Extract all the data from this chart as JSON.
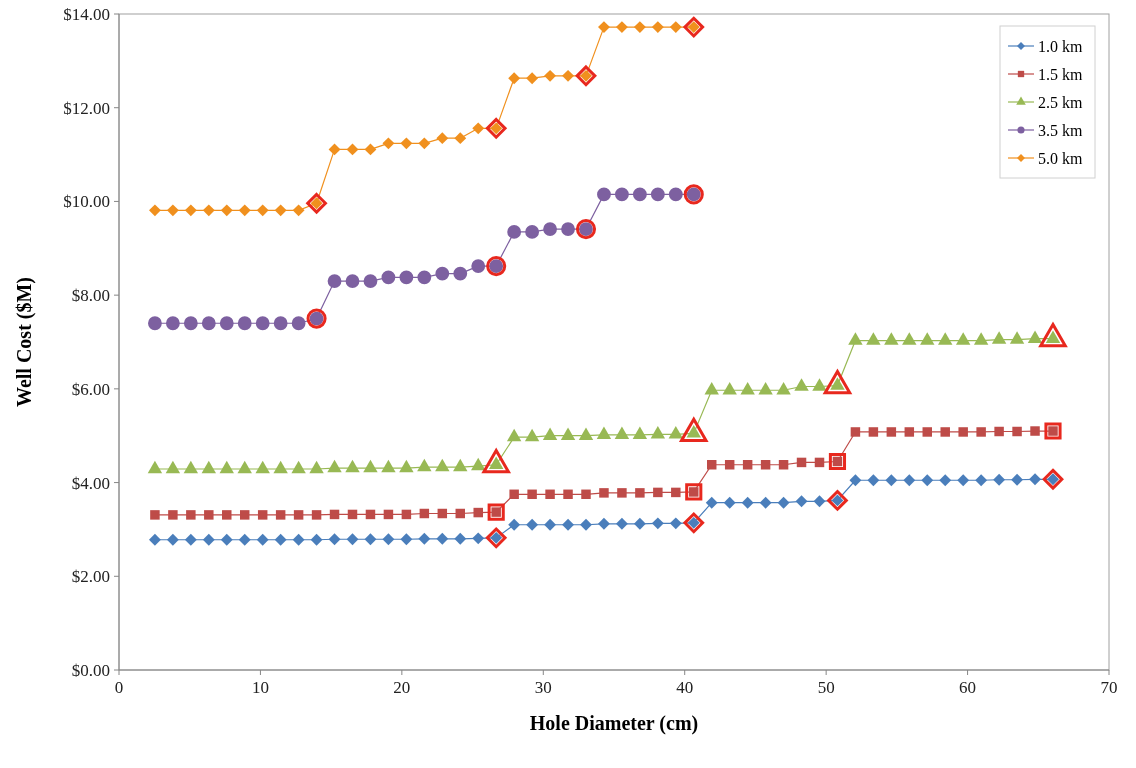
{
  "chart_data": {
    "type": "line",
    "xlabel": "Hole Diameter (cm)",
    "ylabel": "Well Cost ($M)",
    "xlim": [
      0,
      70
    ],
    "xticks": [
      0,
      10,
      20,
      30,
      40,
      50,
      60,
      70
    ],
    "ylim": [
      0,
      14
    ],
    "yticks": [
      {
        "value": 0,
        "label": "$0.00"
      },
      {
        "value": 2,
        "label": "$2.00"
      },
      {
        "value": 4,
        "label": "$4.00"
      },
      {
        "value": 6,
        "label": "$6.00"
      },
      {
        "value": 8,
        "label": "$8.00"
      },
      {
        "value": 10,
        "label": "$10.00"
      },
      {
        "value": 12,
        "label": "$12.00"
      },
      {
        "value": 14,
        "label": "$14.00"
      }
    ],
    "grid": false,
    "legend": "top right",
    "series": [
      {
        "name": "1.0 km",
        "color": "#4a7ebb",
        "marker": "diamond",
        "x": [
          2.54,
          3.81,
          5.08,
          6.35,
          7.62,
          8.89,
          10.16,
          11.43,
          12.7,
          13.97,
          15.24,
          16.51,
          17.78,
          19.05,
          20.32,
          21.59,
          22.86,
          24.13,
          25.4,
          26.67,
          27.94,
          29.21,
          30.48,
          31.75,
          33.02,
          34.29,
          35.56,
          36.83,
          38.1,
          39.37,
          40.64,
          41.91,
          43.18,
          44.45,
          45.72,
          46.99,
          48.26,
          49.53,
          50.8,
          52.07,
          53.34,
          54.61,
          55.88,
          57.15,
          58.42,
          59.69,
          60.96,
          62.23,
          63.5,
          64.77,
          66.04
        ],
        "values": [
          2.78,
          2.78,
          2.78,
          2.78,
          2.78,
          2.78,
          2.78,
          2.78,
          2.78,
          2.78,
          2.79,
          2.79,
          2.79,
          2.79,
          2.79,
          2.8,
          2.8,
          2.8,
          2.81,
          2.82,
          3.1,
          3.1,
          3.1,
          3.1,
          3.1,
          3.12,
          3.12,
          3.12,
          3.13,
          3.13,
          3.14,
          3.57,
          3.57,
          3.57,
          3.57,
          3.57,
          3.6,
          3.6,
          3.62,
          4.05,
          4.05,
          4.05,
          4.05,
          4.05,
          4.05,
          4.05,
          4.05,
          4.06,
          4.06,
          4.07,
          4.07
        ]
      },
      {
        "name": "1.5 km",
        "color": "#be4b48",
        "marker": "square",
        "x": [
          2.54,
          3.81,
          5.08,
          6.35,
          7.62,
          8.89,
          10.16,
          11.43,
          12.7,
          13.97,
          15.24,
          16.51,
          17.78,
          19.05,
          20.32,
          21.59,
          22.86,
          24.13,
          25.4,
          26.67,
          27.94,
          29.21,
          30.48,
          31.75,
          33.02,
          34.29,
          35.56,
          36.83,
          38.1,
          39.37,
          40.64,
          41.91,
          43.18,
          44.45,
          45.72,
          46.99,
          48.26,
          49.53,
          50.8,
          52.07,
          53.34,
          54.61,
          55.88,
          57.15,
          58.42,
          59.69,
          60.96,
          62.23,
          63.5,
          64.77,
          66.04
        ],
        "values": [
          3.31,
          3.31,
          3.31,
          3.31,
          3.31,
          3.31,
          3.31,
          3.31,
          3.31,
          3.31,
          3.32,
          3.32,
          3.32,
          3.32,
          3.32,
          3.34,
          3.34,
          3.34,
          3.36,
          3.37,
          3.75,
          3.75,
          3.75,
          3.75,
          3.75,
          3.78,
          3.78,
          3.78,
          3.79,
          3.79,
          3.8,
          4.38,
          4.38,
          4.38,
          4.38,
          4.38,
          4.43,
          4.43,
          4.45,
          5.08,
          5.08,
          5.08,
          5.08,
          5.08,
          5.08,
          5.08,
          5.08,
          5.09,
          5.09,
          5.1,
          5.1
        ]
      },
      {
        "name": "2.5 km",
        "color": "#98b954",
        "marker": "triangle",
        "x": [
          2.54,
          3.81,
          5.08,
          6.35,
          7.62,
          8.89,
          10.16,
          11.43,
          12.7,
          13.97,
          15.24,
          16.51,
          17.78,
          19.05,
          20.32,
          21.59,
          22.86,
          24.13,
          25.4,
          26.67,
          27.94,
          29.21,
          30.48,
          31.75,
          33.02,
          34.29,
          35.56,
          36.83,
          38.1,
          39.37,
          40.64,
          41.91,
          43.18,
          44.45,
          45.72,
          46.99,
          48.26,
          49.53,
          50.8,
          52.07,
          53.34,
          54.61,
          55.88,
          57.15,
          58.42,
          59.69,
          60.96,
          62.23,
          63.5,
          64.77,
          66.04
        ],
        "values": [
          4.29,
          4.29,
          4.29,
          4.29,
          4.29,
          4.29,
          4.29,
          4.29,
          4.29,
          4.29,
          4.31,
          4.31,
          4.31,
          4.31,
          4.31,
          4.33,
          4.33,
          4.33,
          4.35,
          4.38,
          4.97,
          4.97,
          5.0,
          5.0,
          5.0,
          5.02,
          5.02,
          5.02,
          5.03,
          5.03,
          5.05,
          5.97,
          5.97,
          5.97,
          5.97,
          5.97,
          6.05,
          6.05,
          6.07,
          7.03,
          7.03,
          7.03,
          7.03,
          7.03,
          7.03,
          7.03,
          7.03,
          7.05,
          7.05,
          7.07,
          7.07
        ]
      },
      {
        "name": "3.5 km",
        "color": "#7d60a0",
        "marker": "circle",
        "x": [
          2.54,
          3.81,
          5.08,
          6.35,
          7.62,
          8.89,
          10.16,
          11.43,
          12.7,
          13.97,
          15.24,
          16.51,
          17.78,
          19.05,
          20.32,
          21.59,
          22.86,
          24.13,
          25.4,
          26.67,
          27.94,
          29.21,
          30.48,
          31.75,
          33.02,
          34.29,
          35.56,
          36.83,
          38.1,
          39.37,
          40.64
        ],
        "values": [
          7.4,
          7.4,
          7.4,
          7.4,
          7.4,
          7.4,
          7.4,
          7.4,
          7.4,
          7.5,
          8.3,
          8.3,
          8.3,
          8.38,
          8.38,
          8.38,
          8.46,
          8.46,
          8.62,
          8.62,
          9.35,
          9.35,
          9.41,
          9.41,
          9.41,
          10.15,
          10.15,
          10.15,
          10.15,
          10.15,
          10.15
        ]
      },
      {
        "name": "5.0 km",
        "color": "#f0901e",
        "marker": "diamond",
        "x": [
          2.54,
          3.81,
          5.08,
          6.35,
          7.62,
          8.89,
          10.16,
          11.43,
          12.7,
          13.97,
          15.24,
          16.51,
          17.78,
          19.05,
          20.32,
          21.59,
          22.86,
          24.13,
          25.4,
          26.67,
          27.94,
          29.21,
          30.48,
          31.75,
          33.02,
          34.29,
          35.56,
          36.83,
          38.1,
          39.37,
          40.64
        ],
        "values": [
          9.81,
          9.81,
          9.81,
          9.81,
          9.81,
          9.81,
          9.81,
          9.81,
          9.81,
          9.96,
          11.11,
          11.11,
          11.11,
          11.24,
          11.24,
          11.24,
          11.35,
          11.35,
          11.56,
          11.56,
          12.63,
          12.63,
          12.68,
          12.68,
          12.68,
          13.72,
          13.72,
          13.72,
          13.72,
          13.72,
          13.72
        ]
      },
      {
        "type": "scatter",
        "color": "#e8281e",
        "marker": "diamond",
        "x": [
          26.67,
          40.64,
          50.8,
          66.04
        ],
        "values": [
          2.82,
          3.14,
          3.62,
          4.07
        ]
      },
      {
        "type": "scatter",
        "color": "#e8281e",
        "marker": "square",
        "x": [
          26.67,
          40.64,
          50.8,
          66.04
        ],
        "values": [
          3.37,
          3.8,
          4.45,
          5.1
        ]
      },
      {
        "type": "scatter",
        "color": "#e8281e",
        "marker": "triangle",
        "x": [
          26.67,
          40.64,
          50.8,
          66.04
        ],
        "values": [
          4.38,
          5.05,
          6.07,
          7.07
        ]
      },
      {
        "type": "scatter",
        "color": "#e8281e",
        "marker": "circle",
        "x": [
          13.97,
          26.67,
          33.02,
          40.64
        ],
        "values": [
          7.5,
          8.62,
          9.41,
          10.15
        ]
      },
      {
        "type": "scatter",
        "color": "#e8281e",
        "marker": "diamond",
        "x": [
          13.97,
          26.67,
          40.64,
          33.02
        ],
        "values": [
          9.96,
          11.56,
          13.72,
          12.68
        ]
      }
    ]
  }
}
